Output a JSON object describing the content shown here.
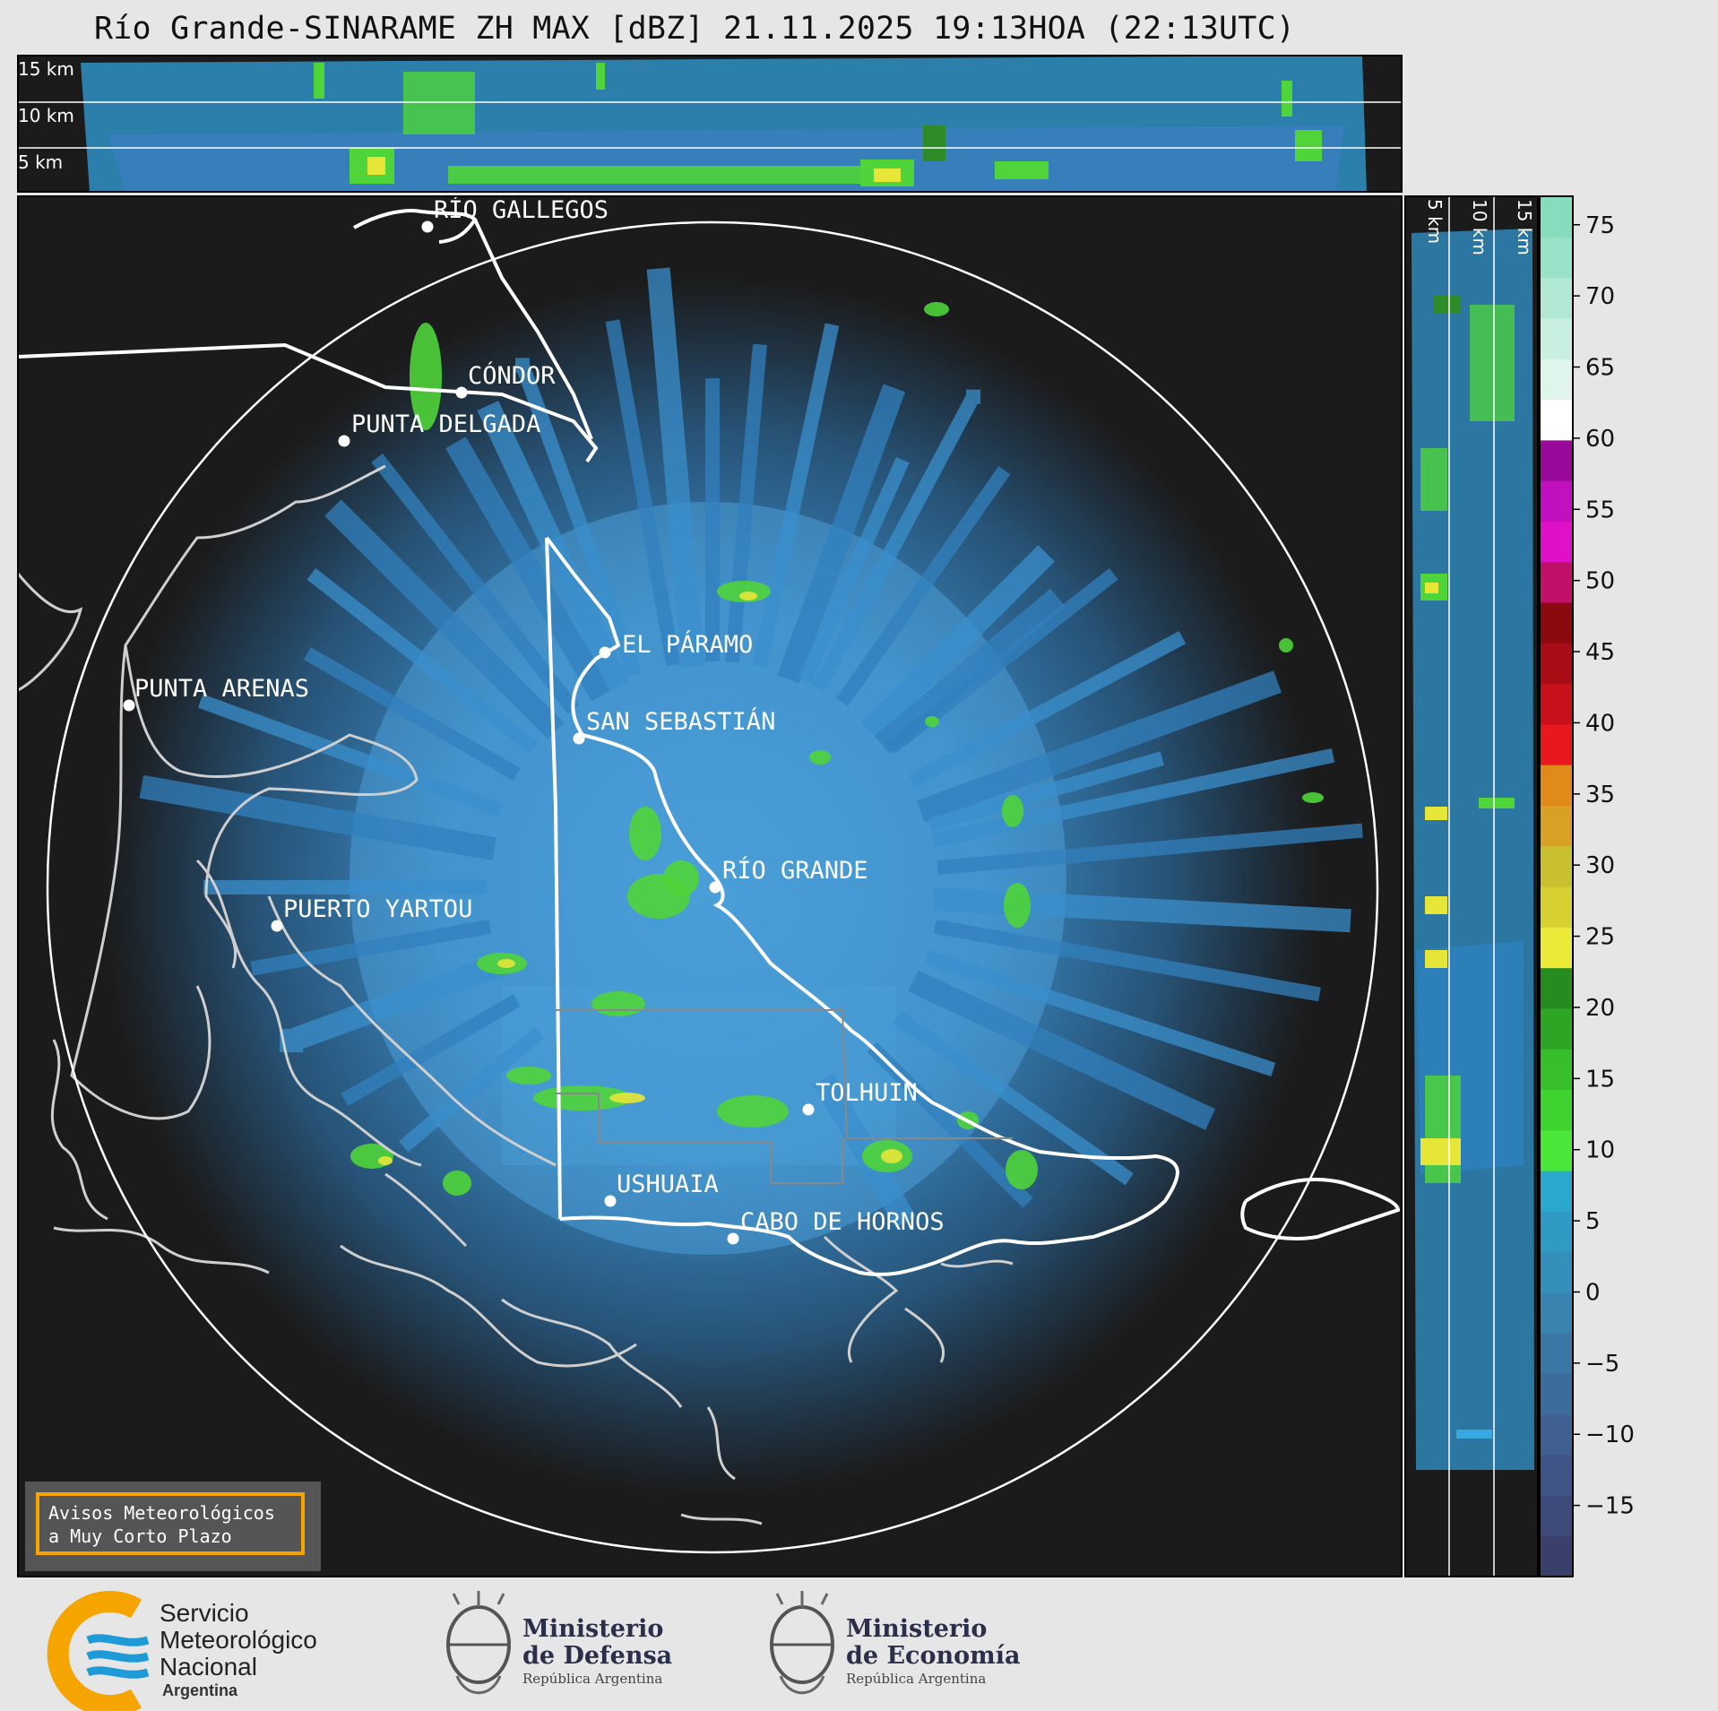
{
  "title": "Río Grande-SINARAME ZH MAX [dBZ] 21.11.2025 19:13HOA (22:13UTC)",
  "height_axis_top": {
    "labels": [
      "15 km",
      "10 km",
      "5 km"
    ]
  },
  "height_axis_right": {
    "labels": [
      "5 km",
      "10 km",
      "15 km"
    ]
  },
  "colorbar": {
    "unit": "dBZ",
    "ticks": [
      "75",
      "70",
      "65",
      "60",
      "55",
      "50",
      "45",
      "40",
      "35",
      "30",
      "25",
      "20",
      "15",
      "10",
      "5",
      "0",
      "−5",
      "−10",
      "−15"
    ],
    "colors_bottom_to_top": [
      "#3b3f6b",
      "#3d4a7a",
      "#3f5585",
      "#3f6090",
      "#3d6b9a",
      "#3a77a5",
      "#3883b0",
      "#348fbb",
      "#2f9bc5",
      "#2aa8d0",
      "#4be63a",
      "#3fd330",
      "#36bf2a",
      "#2ea525",
      "#278c20",
      "#ecea38",
      "#d8d032",
      "#c8c02e",
      "#d8a024",
      "#e08a1a",
      "#e8181e",
      "#c8101a",
      "#a80c14",
      "#8a0a10",
      "#c0106a",
      "#e010c8",
      "#c010c0",
      "#9a0a9a",
      "#ffffff",
      "#dff5ec",
      "#c8efe0",
      "#b0e8d4",
      "#98e2c8",
      "#86dcbc"
    ],
    "value_range": [
      -20,
      77
    ]
  },
  "places": [
    {
      "name": "RÍO GALLEGOS"
    },
    {
      "name": "CÓNDOR"
    },
    {
      "name": "PUNTA DELGADA"
    },
    {
      "name": "PUNTA ARENAS"
    },
    {
      "name": "EL PÁRAMO"
    },
    {
      "name": "SAN SEBASTIÁN"
    },
    {
      "name": "RÍO GRANDE"
    },
    {
      "name": "PUERTO YARTOU"
    },
    {
      "name": "TOLHUIN"
    },
    {
      "name": "USHUAIA"
    },
    {
      "name": "CABO DE HORNOS"
    }
  ],
  "warning": {
    "line1": "Avisos Meteorológicos",
    "line2": "a Muy Corto Plazo"
  },
  "logos": {
    "smn": {
      "line1": "Servicio",
      "line2": "Meteorológico",
      "line3": "Nacional",
      "line4": "Argentina"
    },
    "defensa": {
      "line1": "Ministerio",
      "line2": "de Defensa",
      "line3": "República Argentina"
    },
    "economia": {
      "line1": "Ministerio",
      "line2": "de Economía",
      "line3": "República Argentina"
    }
  },
  "colors": {
    "map_background": "#1b1b1b",
    "page_background": "#e6e6e6",
    "coast": "#cfcfcf",
    "border": "#ffffff",
    "accent_orange": "#f5a400",
    "smn_blue": "#1e9ad6"
  }
}
